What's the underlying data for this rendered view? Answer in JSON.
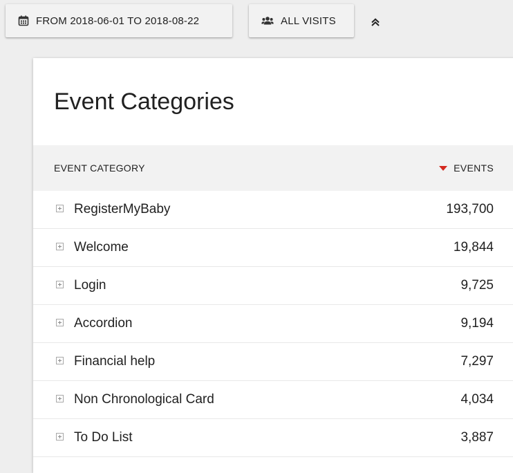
{
  "toolbar": {
    "date_range_label": "FROM 2018-06-01 TO 2018-08-22",
    "date_range_icon": "calendar-icon",
    "segment_label": "ALL VISITS",
    "segment_icon": "people-icon",
    "collapse_icon": "double-chevron-up-icon"
  },
  "report": {
    "title": "Event Categories",
    "columns": {
      "label": "EVENT CATEGORY",
      "value": "EVENTS",
      "sort_direction": "descending",
      "sort_color": "#d4291f"
    },
    "rows": [
      {
        "label": "RegisterMyBaby",
        "value": "193,700"
      },
      {
        "label": "Welcome",
        "value": "19,844"
      },
      {
        "label": "Login",
        "value": "9,725"
      },
      {
        "label": "Accordion",
        "value": "9,194"
      },
      {
        "label": "Financial help",
        "value": "7,297"
      },
      {
        "label": "Non Chronological Card",
        "value": "4,034"
      },
      {
        "label": "To Do List",
        "value": "3,887"
      }
    ]
  }
}
